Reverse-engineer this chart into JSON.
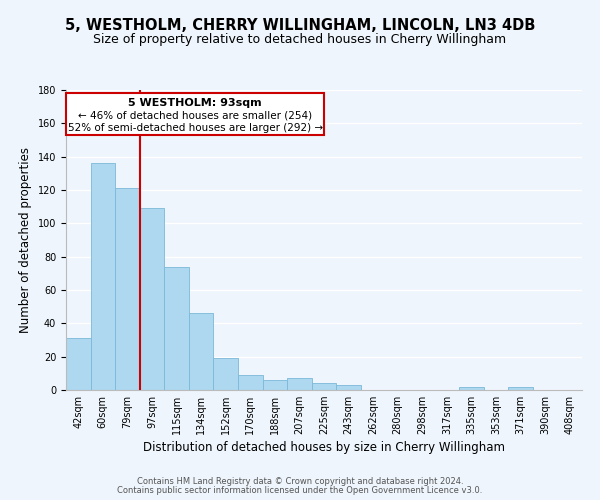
{
  "title": "5, WESTHOLM, CHERRY WILLINGHAM, LINCOLN, LN3 4DB",
  "subtitle": "Size of property relative to detached houses in Cherry Willingham",
  "xlabel": "Distribution of detached houses by size in Cherry Willingham",
  "ylabel": "Number of detached properties",
  "bar_color": "#add8f0",
  "bar_edge_color": "#7ab8d8",
  "categories": [
    "42sqm",
    "60sqm",
    "79sqm",
    "97sqm",
    "115sqm",
    "134sqm",
    "152sqm",
    "170sqm",
    "188sqm",
    "207sqm",
    "225sqm",
    "243sqm",
    "262sqm",
    "280sqm",
    "298sqm",
    "317sqm",
    "335sqm",
    "353sqm",
    "371sqm",
    "390sqm",
    "408sqm"
  ],
  "values": [
    31,
    136,
    121,
    109,
    74,
    46,
    19,
    9,
    6,
    7,
    4,
    3,
    0,
    0,
    0,
    0,
    2,
    0,
    2,
    0,
    0
  ],
  "ylim": [
    0,
    180
  ],
  "yticks": [
    0,
    20,
    40,
    60,
    80,
    100,
    120,
    140,
    160,
    180
  ],
  "property_label": "5 WESTHOLM: 93sqm",
  "annotation_line1": "← 46% of detached houses are smaller (254)",
  "annotation_line2": "52% of semi-detached houses are larger (292) →",
  "line_color": "#cc0000",
  "footer1": "Contains HM Land Registry data © Crown copyright and database right 2024.",
  "footer2": "Contains public sector information licensed under the Open Government Licence v3.0.",
  "background_color": "#eef5fc",
  "grid_color": "#ffffff",
  "title_fontsize": 10.5,
  "subtitle_fontsize": 9,
  "axis_label_fontsize": 8.5,
  "tick_fontsize": 7,
  "footer_fontsize": 6,
  "annot_title_fontsize": 8,
  "annot_text_fontsize": 7.5
}
